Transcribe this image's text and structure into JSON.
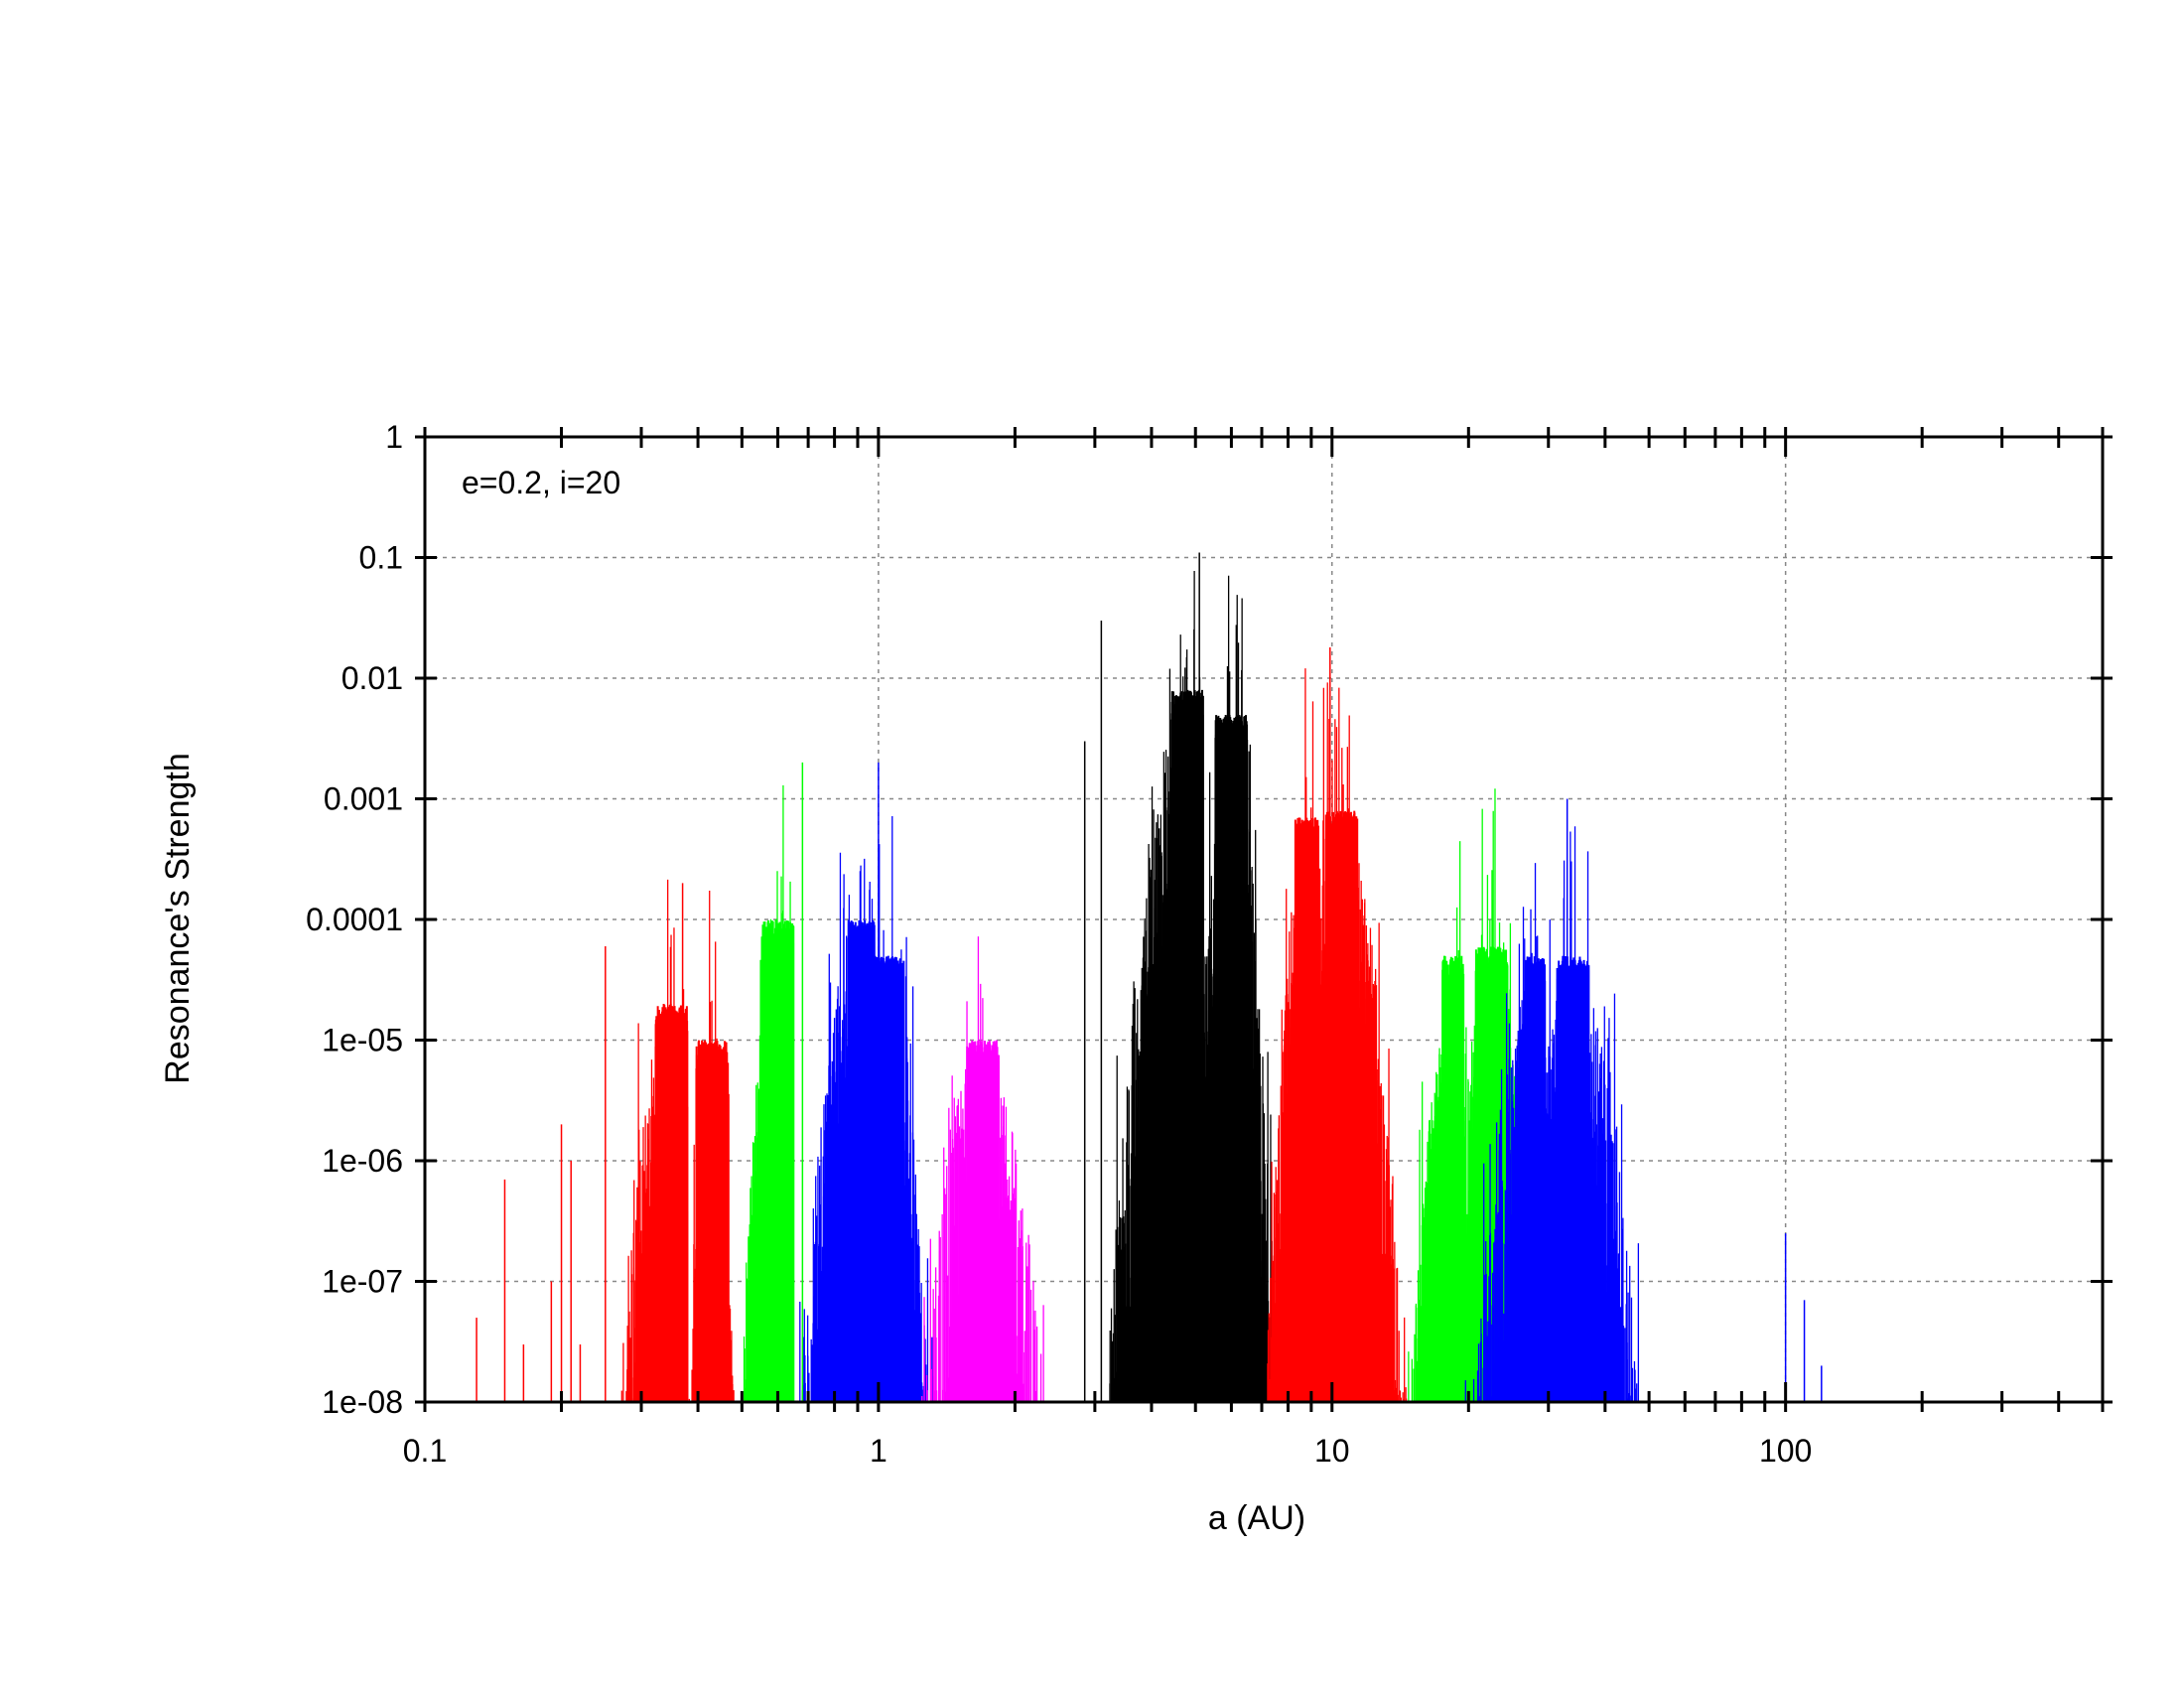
{
  "chart_data": {
    "type": "bar",
    "title": "",
    "xlabel": "a (AU)",
    "ylabel": "Resonance's Strength",
    "annotation": "e=0.2, i=20",
    "x_scale": "log",
    "y_scale": "log",
    "xlim": [
      0.1,
      500
    ],
    "ylim": [
      1e-08,
      1
    ],
    "x_ticks": [
      0.1,
      1,
      10,
      100
    ],
    "x_tick_labels": [
      "0.1",
      "1",
      "10",
      "100"
    ],
    "y_ticks": [
      1,
      0.1,
      0.01,
      0.001,
      0.0001,
      1e-05,
      1e-06,
      1e-07,
      1e-08
    ],
    "y_tick_labels": [
      "1",
      "0.1",
      "0.01",
      "0.001",
      "0.0001",
      "1e-05",
      "1e-06",
      "1e-07",
      "1e-08"
    ],
    "grid": true,
    "colors": {
      "red": "#ff0000",
      "green": "#00ff00",
      "blue": "#0000ff",
      "magenta": "#ff00ff",
      "black": "#000000"
    },
    "groups": [
      {
        "color": "red",
        "a_range": [
          0.25,
          0.38
        ],
        "peak_a": 0.35,
        "peak_strength": 2e-05
      },
      {
        "color": "red",
        "a_range": [
          0.38,
          0.5
        ],
        "peak_a": 0.43,
        "peak_strength": 1e-05
      },
      {
        "color": "green",
        "a_range": [
          0.48,
          0.65
        ],
        "peak_a": 0.6,
        "peak_strength": 0.0001
      },
      {
        "color": "blue",
        "a_range": [
          0.62,
          0.98
        ],
        "peak_a": 0.93,
        "peak_strength": 0.0001
      },
      {
        "color": "blue",
        "a_range": [
          0.95,
          1.35
        ],
        "peak_a": 1.05,
        "peak_strength": 5e-05
      },
      {
        "color": "magenta",
        "a_range": [
          1.1,
          2.4
        ],
        "peak_a": 1.7,
        "peak_strength": 1e-05
      },
      {
        "color": "black",
        "a_range": [
          3.2,
          5.2
        ],
        "peak_a": 4.8,
        "peak_strength": 0.008
      },
      {
        "color": "black",
        "a_range": [
          5.2,
          7.5
        ],
        "peak_a": 6.0,
        "peak_strength": 0.005
      },
      {
        "color": "red",
        "a_range": [
          7.0,
          9.3
        ],
        "peak_a": 9.0,
        "peak_strength": 0.0007
      },
      {
        "color": "red",
        "a_range": [
          9.3,
          15.0
        ],
        "peak_a": 10.5,
        "peak_strength": 0.0008
      },
      {
        "color": "green",
        "a_range": [
          14.0,
          19.5
        ],
        "peak_a": 19.0,
        "peak_strength": 5e-05
      },
      {
        "color": "green",
        "a_range": [
          19.5,
          30.0
        ],
        "peak_a": 22.5,
        "peak_strength": 6e-05
      },
      {
        "color": "blue",
        "a_range": [
          19.0,
          29.5
        ],
        "peak_a": 29.0,
        "peak_strength": 5e-05
      },
      {
        "color": "blue",
        "a_range": [
          29.5,
          52.0
        ],
        "peak_a": 34.0,
        "peak_strength": 5e-05
      }
    ],
    "outliers": [
      {
        "color": "red",
        "a": 0.13,
        "strength": 5e-08
      },
      {
        "color": "red",
        "a": 0.15,
        "strength": 7e-07
      },
      {
        "color": "red",
        "a": 0.165,
        "strength": 3e-08
      },
      {
        "color": "red",
        "a": 0.19,
        "strength": 1e-07
      },
      {
        "color": "red",
        "a": 0.2,
        "strength": 2e-06
      },
      {
        "color": "red",
        "a": 0.21,
        "strength": 1e-06
      },
      {
        "color": "red",
        "a": 0.22,
        "strength": 3e-08
      },
      {
        "color": "red",
        "a": 0.25,
        "strength": 6e-05
      },
      {
        "color": "red",
        "a": 0.37,
        "strength": 0.0002
      },
      {
        "color": "green",
        "a": 0.68,
        "strength": 0.002
      },
      {
        "color": "blue",
        "a": 1.0,
        "strength": 0.002
      },
      {
        "color": "black",
        "a": 2.85,
        "strength": 0.003
      },
      {
        "color": "black",
        "a": 3.1,
        "strength": 0.03
      },
      {
        "color": "black",
        "a": 5.1,
        "strength": 0.11
      },
      {
        "color": "red",
        "a": 9.9,
        "strength": 0.018
      },
      {
        "color": "blue",
        "a": 33.0,
        "strength": 0.001
      },
      {
        "color": "blue",
        "a": 100.0,
        "strength": 2.5e-07
      },
      {
        "color": "blue",
        "a": 110.0,
        "strength": 7e-08
      },
      {
        "color": "blue",
        "a": 120.0,
        "strength": 2e-08
      }
    ]
  }
}
